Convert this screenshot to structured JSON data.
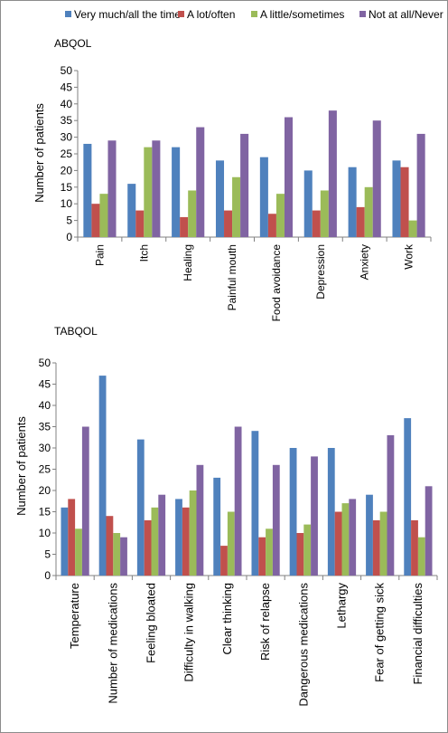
{
  "legend": [
    {
      "label": "Very much/all the time",
      "color": "#4f81bd"
    },
    {
      "label": "A lot/often",
      "color": "#c0504d"
    },
    {
      "label": "A little/sometimes",
      "color": "#9bbb59"
    },
    {
      "label": "Not at all/Never",
      "color": "#8064a2"
    }
  ],
  "chart_data": [
    {
      "type": "bar",
      "title": "ABQOL",
      "xlabel": "",
      "ylabel": "Number of patients",
      "ylim": [
        0,
        50
      ],
      "yticks": [
        0,
        5,
        10,
        15,
        20,
        25,
        30,
        35,
        40,
        45,
        50
      ],
      "categories": [
        "Pain",
        "Itch",
        "Healing",
        "Painful mouth",
        "Food avoidance",
        "Depression",
        "Anxiety",
        "Work"
      ],
      "series": [
        {
          "name": "Very much/all the time",
          "values": [
            28,
            16,
            27,
            23,
            24,
            20,
            21,
            23
          ]
        },
        {
          "name": "A lot/often",
          "values": [
            10,
            8,
            6,
            8,
            7,
            8,
            9,
            21
          ]
        },
        {
          "name": "A little/sometimes",
          "values": [
            13,
            27,
            14,
            18,
            13,
            14,
            15,
            5
          ]
        },
        {
          "name": "Not at all/Never",
          "values": [
            29,
            29,
            33,
            31,
            36,
            38,
            35,
            31
          ]
        }
      ],
      "grid": false,
      "legend_position": "top"
    },
    {
      "type": "bar",
      "title": "TABQOL",
      "xlabel": "",
      "ylabel": "Number of patients",
      "ylim": [
        0,
        50
      ],
      "yticks": [
        0,
        5,
        10,
        15,
        20,
        25,
        30,
        35,
        40,
        45,
        50
      ],
      "categories": [
        "Temperature",
        "Number of medications",
        "Feeling bloated",
        "Difficulty in walking",
        "Clear thinking",
        "Risk of relapse",
        "Dangerous medications",
        "Lethargy",
        "Fear of getting sick",
        "Financial difficulties"
      ],
      "series": [
        {
          "name": "Very much/all the time",
          "values": [
            16,
            47,
            32,
            18,
            23,
            34,
            30,
            30,
            19,
            37
          ]
        },
        {
          "name": "A lot/often",
          "values": [
            18,
            14,
            13,
            16,
            7,
            9,
            10,
            15,
            13,
            13
          ]
        },
        {
          "name": "A little/sometimes",
          "values": [
            11,
            10,
            16,
            20,
            15,
            11,
            12,
            17,
            15,
            9
          ]
        },
        {
          "name": "Not at all/Never",
          "values": [
            35,
            9,
            19,
            26,
            35,
            26,
            28,
            18,
            33,
            21
          ]
        }
      ],
      "grid": false,
      "legend_position": "top"
    }
  ]
}
